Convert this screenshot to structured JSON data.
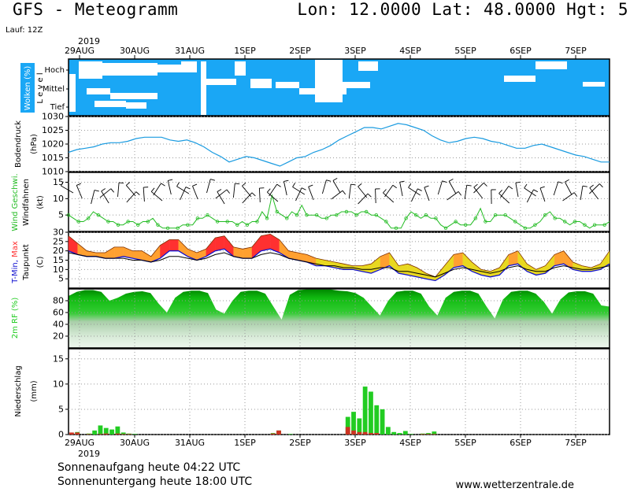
{
  "header": {
    "title": "GFS - Meteogramm",
    "coords": "Lon: 12.0000 Lat: 48.0000 Hgt: 5",
    "run": "Lauf: 12Z"
  },
  "footer": {
    "sunrise": "Sonnenaufgang heute 04:22 UTC",
    "sunset": "Sonnenuntergang heute 18:00 UTC",
    "credit": "www.wetterzentrale.de"
  },
  "colors": {
    "cloud_blue": "#1aa7f5",
    "pressure_line": "#1a9be0",
    "wind_speed": "#22bb22",
    "temp_fill_warm": "#ff3030",
    "temp_fill_mid": "#ffa030",
    "temp_fill_cool": "#e8d820",
    "dewpoint": "#000000",
    "tmin": "#1010d0",
    "rh_fill": "#22cc22",
    "precip_rain": "#22cc22",
    "precip_conv": "#cc3322"
  },
  "chart_data": {
    "type": "meteogram",
    "year": "2019",
    "date_labels": [
      "29AUG",
      "30AUG",
      "31AUG",
      "1SEP",
      "2SEP",
      "3SEP",
      "4SEP",
      "5SEP",
      "6SEP",
      "7SEP"
    ],
    "panels": {
      "clouds": {
        "label": "Wolken (%)",
        "level_label": "L e v e l",
        "levels": [
          "Hoch",
          "Mittel",
          "Tief"
        ]
      },
      "pressure": {
        "label": "Bodendruck",
        "unit": "(hPa)",
        "ticks": [
          1010,
          1015,
          1020,
          1025,
          1030
        ],
        "ylim": [
          1010,
          1030
        ],
        "values": [
          1017,
          1018,
          1018.5,
          1019,
          1020,
          1020.5,
          1020.5,
          1021,
          1022,
          1022.5,
          1022.5,
          1022.5,
          1021.5,
          1021,
          1021.5,
          1020.5,
          1019,
          1017,
          1015.5,
          1013.5,
          1014.5,
          1015.5,
          1015,
          1014,
          1013,
          1012,
          1013.5,
          1015,
          1015.5,
          1017,
          1018,
          1019.5,
          1021.5,
          1023,
          1024.5,
          1026,
          1026,
          1025.5,
          1026.5,
          1027.5,
          1027,
          1026,
          1025,
          1023,
          1021.5,
          1020.5,
          1021,
          1022,
          1022.5,
          1022,
          1021,
          1020.5,
          1019.5,
          1018.5,
          1018.5,
          1019.5,
          1020,
          1019,
          1018,
          1017,
          1016,
          1015.5,
          1014.5,
          1013.5,
          1013.5
        ]
      },
      "wind": {
        "label": "Wind Geschwi.",
        "sublabel": "Windfahnen",
        "unit": "(kt)",
        "ticks": [
          5,
          10,
          15
        ],
        "ylim": [
          0,
          18
        ],
        "values": [
          5,
          4,
          3,
          3,
          4,
          6,
          5,
          4,
          3,
          3,
          2,
          2,
          3,
          3,
          2,
          3,
          3,
          4,
          2,
          1,
          1,
          1,
          1,
          2,
          2,
          2,
          4,
          4,
          5,
          4,
          3,
          3,
          3,
          3,
          2,
          3,
          2,
          3,
          3,
          6,
          4,
          11,
          6,
          5,
          4,
          6,
          5,
          8,
          5,
          5,
          5,
          4,
          4,
          5,
          5,
          6,
          6,
          6,
          5,
          6,
          6,
          5,
          5,
          4,
          3,
          1,
          1,
          1,
          4,
          6,
          5,
          4,
          5,
          4,
          4,
          2,
          1,
          2,
          3,
          2,
          2,
          2,
          4,
          7,
          3,
          3,
          5,
          5,
          5,
          4,
          3,
          2,
          1,
          1,
          2,
          3,
          5,
          6,
          4,
          4,
          3,
          2,
          3,
          3,
          2,
          1,
          2,
          2,
          2,
          3
        ]
      },
      "temperature": {
        "label_parts": [
          "T-Min, ",
          "Max"
        ],
        "sublabel": "Taupunkt",
        "unit": "(C)",
        "ticks": [
          5,
          10,
          15,
          20,
          25,
          30
        ],
        "ylim": [
          0,
          30
        ],
        "tmax": [
          28,
          24,
          20,
          19,
          19,
          22,
          22,
          20,
          20,
          17,
          23,
          26,
          26,
          21,
          19,
          21,
          27,
          28,
          22,
          21,
          22,
          28,
          29,
          26,
          20,
          19,
          18,
          16,
          15,
          14,
          13,
          12,
          12,
          13,
          17,
          19,
          12,
          13,
          11,
          8,
          6,
          12,
          18,
          19,
          14,
          10,
          9,
          11,
          18,
          20,
          13,
          10,
          12,
          18,
          20,
          14,
          12,
          11,
          13,
          20
        ],
        "tmin": [
          20,
          18,
          17,
          17,
          16,
          16,
          17,
          16,
          15,
          14,
          16,
          20,
          20,
          17,
          15,
          17,
          20,
          21,
          17,
          16,
          16,
          20,
          21,
          19,
          16,
          15,
          14,
          12,
          12,
          11,
          10,
          10,
          9,
          8,
          10,
          12,
          8,
          7,
          6,
          5,
          4,
          7,
          11,
          12,
          9,
          7,
          6,
          7,
          12,
          13,
          9,
          7,
          8,
          12,
          13,
          10,
          9,
          9,
          10,
          13
        ],
        "dewpoint": [
          19,
          18,
          17,
          17,
          16,
          16,
          16,
          15,
          15,
          14,
          15,
          17,
          17,
          16,
          15,
          16,
          18,
          19,
          17,
          16,
          16,
          18,
          19,
          18,
          16,
          15,
          14,
          13,
          12,
          12,
          11,
          11,
          10,
          10,
          11,
          11,
          9,
          9,
          8,
          7,
          6,
          8,
          10,
          11,
          10,
          9,
          8,
          9,
          11,
          12,
          10,
          9,
          9,
          11,
          12,
          11,
          10,
          10,
          11,
          12
        ]
      },
      "humidity": {
        "label": "2m RF (%)",
        "ticks": [
          20,
          40,
          60,
          80
        ],
        "ylim": [
          0,
          100
        ],
        "values": [
          88,
          95,
          98,
          98,
          95,
          80,
          85,
          92,
          95,
          96,
          93,
          75,
          60,
          85,
          95,
          97,
          97,
          93,
          65,
          58,
          80,
          95,
          97,
          97,
          92,
          70,
          48,
          90,
          98,
          99,
          99,
          99,
          99,
          97,
          96,
          93,
          85,
          70,
          55,
          80,
          95,
          97,
          97,
          92,
          70,
          55,
          85,
          95,
          97,
          97,
          92,
          70,
          50,
          82,
          95,
          97,
          97,
          92,
          78,
          58,
          82,
          94,
          96,
          96,
          92,
          72,
          70
        ]
      },
      "precipitation": {
        "label": "Niederschlag",
        "unit": "(mm)",
        "ticks": [
          0,
          5,
          10,
          15
        ],
        "ylim": [
          0,
          17
        ],
        "rain": [
          0.3,
          0.5,
          0,
          0.2,
          0.8,
          1.8,
          1.3,
          1.0,
          1.6,
          0.4,
          0.2,
          0.1,
          0,
          0,
          0,
          0,
          0,
          0,
          0,
          0,
          0,
          0,
          0,
          0,
          0,
          0,
          0,
          0,
          0,
          0,
          0,
          0,
          0,
          0,
          0,
          0.3,
          0.8,
          0,
          0.1,
          0,
          0,
          0,
          0,
          0,
          0,
          0,
          0,
          0,
          3.5,
          4.5,
          3.2,
          9.5,
          8.5,
          5.8,
          5.0,
          1.5,
          0.5,
          0.3,
          0.7,
          0.1,
          0,
          0.2,
          0.3,
          0.6,
          0,
          0,
          0,
          0,
          0,
          0,
          0,
          0,
          0,
          0,
          0,
          0,
          0,
          0,
          0,
          0,
          0,
          0,
          0,
          0,
          0,
          0,
          0,
          0,
          0,
          0,
          0,
          0,
          0,
          0
        ],
        "conv": [
          0.4,
          0.4,
          0,
          0.1,
          0,
          0.1,
          0.2,
          0,
          0.2,
          0.1,
          0.1,
          0,
          0,
          0,
          0,
          0,
          0,
          0,
          0,
          0,
          0,
          0,
          0,
          0,
          0,
          0,
          0,
          0,
          0,
          0,
          0,
          0,
          0,
          0,
          0,
          0.2,
          0.8,
          0,
          0,
          0,
          0,
          0,
          0,
          0,
          0,
          0,
          0,
          0,
          1.5,
          0.8,
          0.5,
          0.5,
          0.3,
          0.3,
          0,
          0,
          0,
          0,
          0,
          0,
          0,
          0.1,
          0.1,
          0.1,
          0,
          0,
          0,
          0,
          0,
          0,
          0,
          0,
          0,
          0,
          0,
          0,
          0,
          0,
          0,
          0,
          0,
          0,
          0,
          0,
          0,
          0,
          0,
          0,
          0,
          0,
          0,
          0,
          0,
          0
        ]
      }
    }
  }
}
